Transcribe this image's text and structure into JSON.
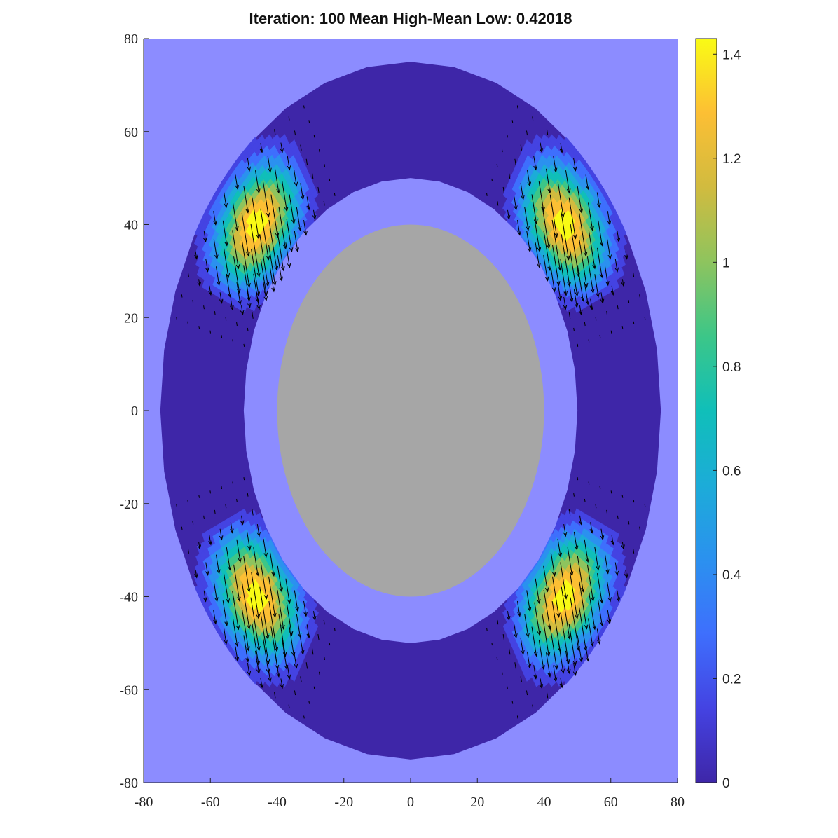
{
  "chart_data": {
    "type": "contour",
    "title": "Iteration: 100 Mean High-Mean Low: 0.42018",
    "xlim": [
      -80,
      80
    ],
    "xticks": [
      -80,
      -60,
      -40,
      -20,
      0,
      20,
      40,
      60,
      80
    ],
    "ylim": [
      -80,
      80
    ],
    "yticks": [
      -80,
      -60,
      -40,
      -20,
      0,
      20,
      40,
      60,
      80
    ],
    "clim": [
      0,
      1.43
    ],
    "cticks": [
      0,
      0.2,
      0.4,
      0.6,
      0.8,
      1,
      1.2,
      1.4
    ],
    "colormap": [
      "#3e26a8",
      "#4443e2",
      "#3e6ffd",
      "#2b91ef",
      "#1cacd8",
      "#10bfb9",
      "#3cc688",
      "#8ec45e",
      "#d1bb3f",
      "#fcbf34",
      "#f9fb15"
    ],
    "background_color": "#8c8cff",
    "hole_color": "#a6a6a6",
    "grid": false
  }
}
